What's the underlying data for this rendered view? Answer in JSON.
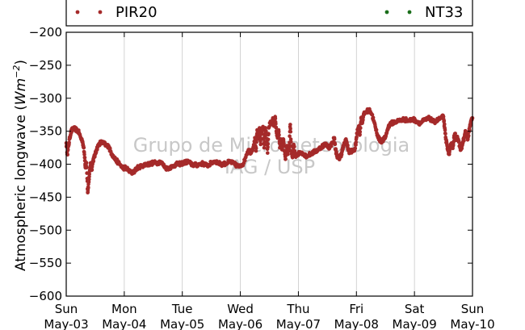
{
  "chart_data": {
    "type": "scatter",
    "title": "",
    "xlabel": "",
    "ylabel": "Atmospheric longwave (Wm⁻²)",
    "ylabel_main": "Atmospheric longwave (",
    "ylabel_unit": "Wm",
    "ylabel_exp": "−2",
    "ylabel_close": ")",
    "ylim": [
      -600,
      -200
    ],
    "yticks": [
      -600,
      -550,
      -500,
      -450,
      -400,
      -350,
      -300,
      -250,
      -200
    ],
    "ytick_labels": [
      "−600",
      "−550",
      "−500",
      "−450",
      "−400",
      "−350",
      "−300",
      "−250",
      "−200"
    ],
    "xlim": [
      0,
      7
    ],
    "xtick_days": [
      "Sun",
      "Mon",
      "Tue",
      "Wed",
      "Thu",
      "Fri",
      "Sat",
      "Sun"
    ],
    "xtick_dates": [
      "May-03",
      "May-04",
      "May-05",
      "May-06",
      "May-07",
      "May-08",
      "May-09",
      "May-10"
    ],
    "grid": "vertical",
    "legend_position": "top",
    "watermark_lines": [
      "Grupo de Micrometeorologia",
      "IAG / USP"
    ],
    "series": [
      {
        "name": "PIR20",
        "color": "#a52a2a",
        "points": [
          [
            0.0,
            -368
          ],
          [
            0.02,
            -385
          ],
          [
            0.04,
            -372
          ],
          [
            0.06,
            -360
          ],
          [
            0.08,
            -352
          ],
          [
            0.1,
            -348
          ],
          [
            0.13,
            -346
          ],
          [
            0.16,
            -347
          ],
          [
            0.19,
            -349
          ],
          [
            0.22,
            -352
          ],
          [
            0.25,
            -360
          ],
          [
            0.28,
            -365
          ],
          [
            0.3,
            -375
          ],
          [
            0.32,
            -390
          ],
          [
            0.33,
            -405
          ],
          [
            0.35,
            -398
          ],
          [
            0.37,
            -443
          ],
          [
            0.38,
            -435
          ],
          [
            0.4,
            -415
          ],
          [
            0.42,
            -398
          ],
          [
            0.44,
            -408
          ],
          [
            0.46,
            -395
          ],
          [
            0.48,
            -390
          ],
          [
            0.5,
            -385
          ],
          [
            0.52,
            -378
          ],
          [
            0.55,
            -372
          ],
          [
            0.58,
            -368
          ],
          [
            0.61,
            -367
          ],
          [
            0.64,
            -368
          ],
          [
            0.67,
            -370
          ],
          [
            0.7,
            -373
          ],
          [
            0.73,
            -372
          ],
          [
            0.76,
            -380
          ],
          [
            0.79,
            -385
          ],
          [
            0.82,
            -390
          ],
          [
            0.86,
            -394
          ],
          [
            0.9,
            -398
          ],
          [
            0.94,
            -402
          ],
          [
            0.98,
            -406
          ],
          [
            1.02,
            -405
          ],
          [
            1.06,
            -408
          ],
          [
            1.1,
            -412
          ],
          [
            1.14,
            -413
          ],
          [
            1.18,
            -410
          ],
          [
            1.22,
            -406
          ],
          [
            1.26,
            -404
          ],
          [
            1.3,
            -403
          ],
          [
            1.34,
            -401
          ],
          [
            1.38,
            -400
          ],
          [
            1.42,
            -400
          ],
          [
            1.46,
            -399
          ],
          [
            1.5,
            -398
          ],
          [
            1.54,
            -398
          ],
          [
            1.58,
            -398
          ],
          [
            1.62,
            -396
          ],
          [
            1.66,
            -400
          ],
          [
            1.7,
            -404
          ],
          [
            1.74,
            -407
          ],
          [
            1.78,
            -405
          ],
          [
            1.82,
            -404
          ],
          [
            1.86,
            -402
          ],
          [
            1.9,
            -400
          ],
          [
            1.94,
            -400
          ],
          [
            1.98,
            -399
          ],
          [
            2.02,
            -398
          ],
          [
            2.06,
            -397
          ],
          [
            2.1,
            -396
          ],
          [
            2.14,
            -399
          ],
          [
            2.18,
            -401
          ],
          [
            2.22,
            -401
          ],
          [
            2.26,
            -401
          ],
          [
            2.3,
            -400
          ],
          [
            2.34,
            -399
          ],
          [
            2.38,
            -400
          ],
          [
            2.42,
            -402
          ],
          [
            2.46,
            -401
          ],
          [
            2.5,
            -398
          ],
          [
            2.54,
            -396
          ],
          [
            2.58,
            -396
          ],
          [
            2.62,
            -398
          ],
          [
            2.66,
            -400
          ],
          [
            2.7,
            -400
          ],
          [
            2.74,
            -399
          ],
          [
            2.78,
            -398
          ],
          [
            2.82,
            -396
          ],
          [
            2.86,
            -398
          ],
          [
            2.9,
            -400
          ],
          [
            2.94,
            -402
          ],
          [
            2.98,
            -404
          ],
          [
            3.02,
            -401
          ],
          [
            3.06,
            -398
          ],
          [
            3.1,
            -386
          ],
          [
            3.14,
            -378
          ],
          [
            3.18,
            -382
          ],
          [
            3.22,
            -375
          ],
          [
            3.25,
            -360
          ],
          [
            3.27,
            -380
          ],
          [
            3.29,
            -348
          ],
          [
            3.31,
            -362
          ],
          [
            3.33,
            -345
          ],
          [
            3.35,
            -370
          ],
          [
            3.37,
            -350
          ],
          [
            3.39,
            -343
          ],
          [
            3.41,
            -375
          ],
          [
            3.43,
            -346
          ],
          [
            3.45,
            -355
          ],
          [
            3.47,
            -383
          ],
          [
            3.49,
            -345
          ],
          [
            3.52,
            -335
          ],
          [
            3.54,
            -340
          ],
          [
            3.56,
            -330
          ],
          [
            3.58,
            -342
          ],
          [
            3.6,
            -328
          ],
          [
            3.62,
            -350
          ],
          [
            3.64,
            -360
          ],
          [
            3.66,
            -348
          ],
          [
            3.68,
            -375
          ],
          [
            3.7,
            -362
          ],
          [
            3.72,
            -378
          ],
          [
            3.74,
            -362
          ],
          [
            3.76,
            -380
          ],
          [
            3.78,
            -392
          ],
          [
            3.8,
            -372
          ],
          [
            3.82,
            -385
          ],
          [
            3.84,
            -376
          ],
          [
            3.86,
            -340
          ],
          [
            3.88,
            -380
          ],
          [
            3.9,
            -390
          ],
          [
            3.92,
            -370
          ],
          [
            3.95,
            -388
          ],
          [
            3.98,
            -385
          ],
          [
            4.02,
            -383
          ],
          [
            4.06,
            -382
          ],
          [
            4.1,
            -385
          ],
          [
            4.14,
            -388
          ],
          [
            4.18,
            -386
          ],
          [
            4.22,
            -384
          ],
          [
            4.26,
            -382
          ],
          [
            4.3,
            -380
          ],
          [
            4.34,
            -378
          ],
          [
            4.38,
            -375
          ],
          [
            4.42,
            -372
          ],
          [
            4.46,
            -370
          ],
          [
            4.5,
            -372
          ],
          [
            4.54,
            -375
          ],
          [
            4.58,
            -368
          ],
          [
            4.62,
            -360
          ],
          [
            4.64,
            -378
          ],
          [
            4.66,
            -385
          ],
          [
            4.68,
            -390
          ],
          [
            4.7,
            -392
          ],
          [
            4.72,
            -388
          ],
          [
            4.74,
            -385
          ],
          [
            4.76,
            -378
          ],
          [
            4.78,
            -372
          ],
          [
            4.8,
            -368
          ],
          [
            4.82,
            -362
          ],
          [
            4.84,
            -370
          ],
          [
            4.86,
            -378
          ],
          [
            4.88,
            -382
          ],
          [
            4.9,
            -380
          ],
          [
            4.92,
            -380
          ],
          [
            4.95,
            -380
          ],
          [
            4.98,
            -376
          ],
          [
            5.0,
            -360
          ],
          [
            5.02,
            -348
          ],
          [
            5.04,
            -342
          ],
          [
            5.06,
            -355
          ],
          [
            5.08,
            -330
          ],
          [
            5.1,
            -338
          ],
          [
            5.12,
            -326
          ],
          [
            5.15,
            -322
          ],
          [
            5.18,
            -320
          ],
          [
            5.21,
            -318
          ],
          [
            5.24,
            -320
          ],
          [
            5.27,
            -325
          ],
          [
            5.3,
            -335
          ],
          [
            5.33,
            -345
          ],
          [
            5.36,
            -355
          ],
          [
            5.39,
            -362
          ],
          [
            5.42,
            -365
          ],
          [
            5.45,
            -364
          ],
          [
            5.48,
            -362
          ],
          [
            5.51,
            -356
          ],
          [
            5.54,
            -346
          ],
          [
            5.57,
            -340
          ],
          [
            5.6,
            -338
          ],
          [
            5.63,
            -337
          ],
          [
            5.66,
            -336
          ],
          [
            5.7,
            -335
          ],
          [
            5.74,
            -334
          ],
          [
            5.78,
            -333
          ],
          [
            5.82,
            -332
          ],
          [
            5.86,
            -333
          ],
          [
            5.9,
            -334
          ],
          [
            5.94,
            -333
          ],
          [
            5.98,
            -332
          ],
          [
            6.02,
            -334
          ],
          [
            6.06,
            -336
          ],
          [
            6.1,
            -338
          ],
          [
            6.14,
            -335
          ],
          [
            6.18,
            -333
          ],
          [
            6.22,
            -332
          ],
          [
            6.26,
            -330
          ],
          [
            6.3,
            -334
          ],
          [
            6.34,
            -336
          ],
          [
            6.38,
            -334
          ],
          [
            6.42,
            -332
          ],
          [
            6.46,
            -330
          ],
          [
            6.5,
            -328
          ],
          [
            6.52,
            -345
          ],
          [
            6.54,
            -362
          ],
          [
            6.56,
            -370
          ],
          [
            6.58,
            -380
          ],
          [
            6.6,
            -385
          ],
          [
            6.62,
            -374
          ],
          [
            6.64,
            -368
          ],
          [
            6.66,
            -376
          ],
          [
            6.68,
            -360
          ],
          [
            6.7,
            -355
          ],
          [
            6.72,
            -362
          ],
          [
            6.74,
            -358
          ],
          [
            6.76,
            -366
          ],
          [
            6.78,
            -373
          ],
          [
            6.8,
            -378
          ],
          [
            6.82,
            -372
          ],
          [
            6.84,
            -365
          ],
          [
            6.86,
            -360
          ],
          [
            6.88,
            -350
          ],
          [
            6.9,
            -356
          ],
          [
            6.92,
            -362
          ],
          [
            6.94,
            -350
          ],
          [
            6.96,
            -342
          ],
          [
            6.98,
            -333
          ],
          [
            7.0,
            -330
          ]
        ]
      },
      {
        "name": "NT33",
        "color": "#1a6e1a",
        "points": []
      }
    ]
  }
}
